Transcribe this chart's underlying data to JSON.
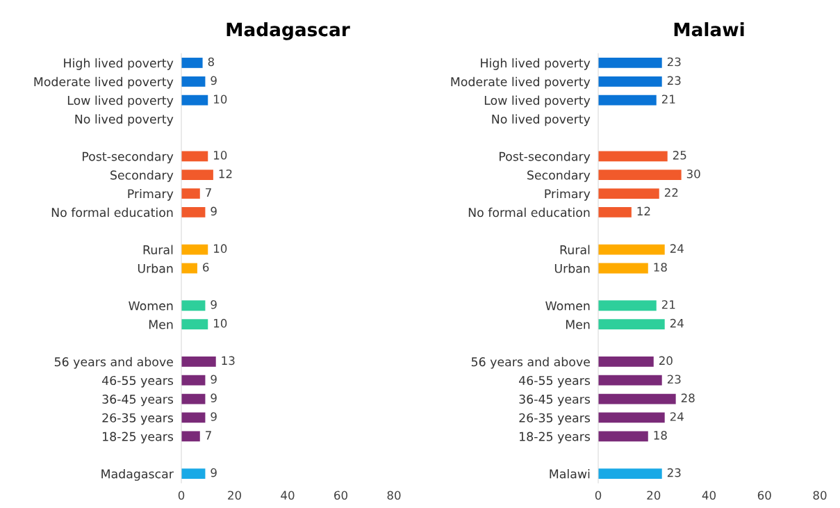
{
  "chart_data": [
    {
      "type": "bar",
      "orientation": "horizontal",
      "title": "Madagascar",
      "data_labels": true,
      "grid": false,
      "legend": false,
      "xlim": [
        0,
        80
      ],
      "xticks": [
        0,
        20,
        40,
        60,
        80
      ],
      "categories": [
        "High lived poverty",
        "Moderate lived poverty",
        "Low lived poverty",
        "No lived poverty",
        null,
        "Post-secondary",
        "Secondary",
        "Primary",
        "No formal education",
        null,
        "Rural",
        "Urban",
        null,
        "Women",
        "Men",
        null,
        "56 years and above",
        "46-55 years",
        "36-45 years",
        "26-35 years",
        "18-25 years",
        null,
        "Madagascar"
      ],
      "values": [
        8,
        9,
        10,
        null,
        null,
        10,
        12,
        7,
        9,
        null,
        10,
        6,
        null,
        9,
        10,
        null,
        13,
        9,
        9,
        9,
        7,
        null,
        9
      ],
      "colors": [
        "#0a74d6",
        "#0a74d6",
        "#0a74d6",
        "#0a74d6",
        null,
        "#f15a2b",
        "#f15a2b",
        "#f15a2b",
        "#f15a2b",
        null,
        "#ffab00",
        "#ffab00",
        null,
        "#2ecf9b",
        "#2ecf9b",
        null,
        "#7a2a78",
        "#7a2a78",
        "#7a2a78",
        "#7a2a78",
        "#7a2a78",
        null,
        "#19a9e6"
      ]
    },
    {
      "type": "bar",
      "orientation": "horizontal",
      "title": "Malawi",
      "data_labels": true,
      "grid": false,
      "legend": false,
      "xlim": [
        0,
        80
      ],
      "xticks": [
        0,
        20,
        40,
        60,
        80
      ],
      "categories": [
        "High lived poverty",
        "Moderate lived poverty",
        "Low lived poverty",
        "No lived poverty",
        null,
        "Post-secondary",
        "Secondary",
        "Primary",
        "No formal education",
        null,
        "Rural",
        "Urban",
        null,
        "Women",
        "Men",
        null,
        "56 years and above",
        "46-55 years",
        "36-45 years",
        "26-35 years",
        "18-25 years",
        null,
        "Malawi"
      ],
      "values": [
        23,
        23,
        21,
        null,
        null,
        25,
        30,
        22,
        12,
        null,
        24,
        18,
        null,
        21,
        24,
        null,
        20,
        23,
        28,
        24,
        18,
        null,
        23
      ],
      "colors": [
        "#0a74d6",
        "#0a74d6",
        "#0a74d6",
        "#0a74d6",
        null,
        "#f15a2b",
        "#f15a2b",
        "#f15a2b",
        "#f15a2b",
        null,
        "#ffab00",
        "#ffab00",
        null,
        "#2ecf9b",
        "#2ecf9b",
        null,
        "#7a2a78",
        "#7a2a78",
        "#7a2a78",
        "#7a2a78",
        "#7a2a78",
        null,
        "#19a9e6"
      ]
    }
  ]
}
